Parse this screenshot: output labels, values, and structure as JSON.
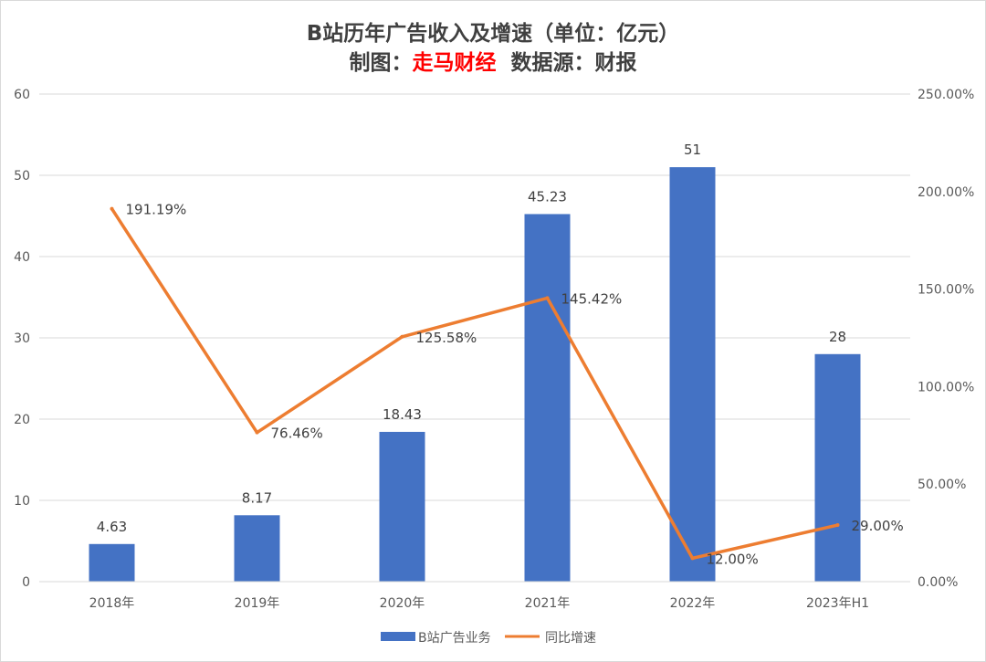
{
  "title": {
    "line1": "B站历年广告收入及增速（单位：亿元）",
    "line2_prefix": "制图：",
    "line2_highlight": "走马财经",
    "line2_suffix": "  数据源：财报"
  },
  "colors": {
    "bar": "#4472c4",
    "line": "#ed7d31",
    "highlight": "#ff0000",
    "grid": "#d9d9d9"
  },
  "chart_data": {
    "type": "bar",
    "categories": [
      "2018年",
      "2019年",
      "2020年",
      "2021年",
      "2022年",
      "2023年H1"
    ],
    "series": [
      {
        "name": "B站广告业务",
        "type": "bar",
        "axis": "left",
        "values": [
          4.63,
          8.17,
          18.43,
          45.23,
          51,
          28
        ],
        "labels": [
          "4.63",
          "8.17",
          "18.43",
          "45.23",
          "51",
          "28"
        ]
      },
      {
        "name": "同比增速",
        "type": "line",
        "axis": "right",
        "values": [
          191.19,
          76.46,
          125.58,
          145.42,
          12.0,
          29.0
        ],
        "labels": [
          "191.19%",
          "76.46%",
          "125.58%",
          "145.42%",
          "12.00%",
          "29.00%"
        ]
      }
    ],
    "y_left": {
      "ylim": [
        0,
        60
      ],
      "ticks": [
        0,
        10,
        20,
        30,
        40,
        50,
        60
      ],
      "tick_labels": [
        "0",
        "10",
        "20",
        "30",
        "40",
        "50",
        "60"
      ]
    },
    "y_right": {
      "ylim": [
        0,
        250
      ],
      "ticks": [
        0,
        50,
        100,
        150,
        200,
        250
      ],
      "tick_labels": [
        "0.00%",
        "50.00%",
        "100.00%",
        "150.00%",
        "200.00%",
        "250.00%"
      ]
    },
    "grid": true,
    "legend_position": "bottom"
  }
}
